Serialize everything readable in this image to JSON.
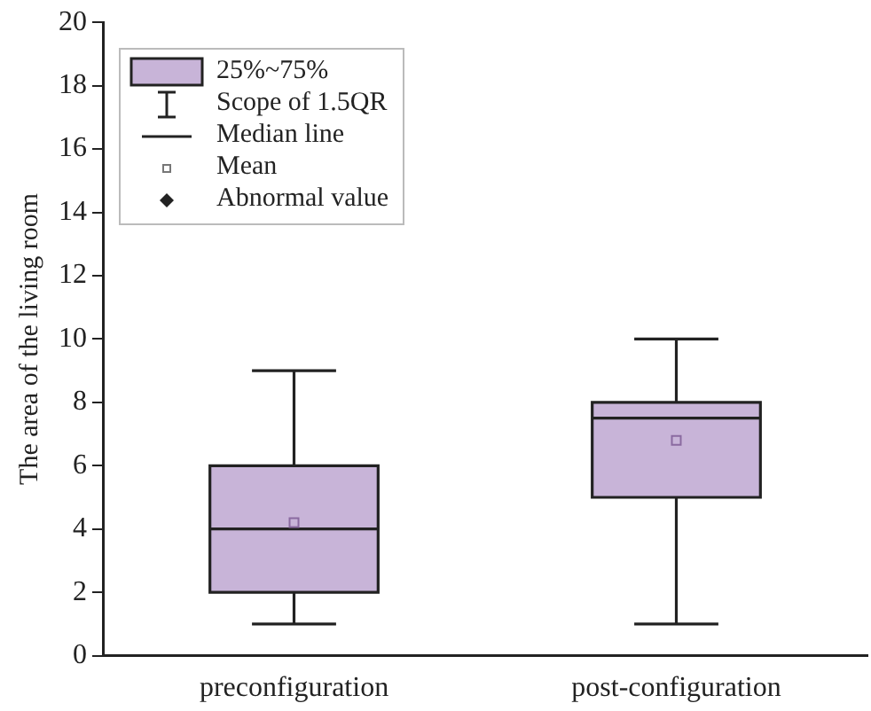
{
  "chart_data": {
    "type": "box",
    "ylabel": "The area of the living room",
    "categories": [
      "preconfiguration",
      "post-configuration"
    ],
    "series": [
      {
        "color": "#c8b4d8",
        "boxes": [
          {
            "low": 1,
            "q1": 2,
            "median": 4,
            "q3": 6,
            "high": 9,
            "mean": 4.2
          },
          {
            "low": 1,
            "q1": 5,
            "median": 7.5,
            "q3": 8,
            "high": 10,
            "mean": 6.8
          }
        ]
      }
    ],
    "ylim": [
      0,
      20
    ],
    "yticks": [
      0,
      2,
      4,
      6,
      8,
      10,
      12,
      14,
      16,
      18,
      20
    ],
    "grid": false,
    "annotations": [
      "25%~75%",
      "Scope of 1.5QR",
      "Median line",
      "Mean",
      "Abnormal value"
    ]
  }
}
